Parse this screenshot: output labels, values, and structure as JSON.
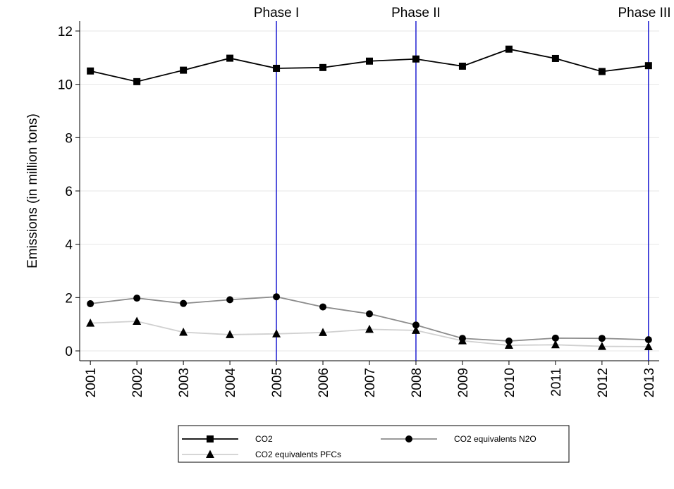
{
  "chart_data": {
    "type": "line",
    "ylabel": "Emissions (in million tons)",
    "x": [
      2001,
      2002,
      2003,
      2004,
      2005,
      2006,
      2007,
      2008,
      2009,
      2010,
      2011,
      2012,
      2013
    ],
    "xlim": [
      2000.77,
      2013.23
    ],
    "xticks": [
      2001,
      2002,
      2003,
      2004,
      2005,
      2006,
      2007,
      2008,
      2009,
      2010,
      2011,
      2012,
      2013
    ],
    "ylim": [
      -0.37,
      12.37
    ],
    "yticks": [
      0,
      2,
      4,
      6,
      8,
      10,
      12
    ],
    "grid": true,
    "series": [
      {
        "name": "CO2",
        "color": "#000000",
        "marker": "square",
        "values": [
          10.5,
          10.1,
          10.53,
          10.98,
          10.6,
          10.63,
          10.87,
          10.95,
          10.68,
          11.32,
          10.97,
          10.48,
          10.7
        ]
      },
      {
        "name": "CO2 equivalents N2O",
        "color": "#8c8c8c",
        "marker": "circle",
        "values": [
          1.77,
          1.98,
          1.78,
          1.92,
          2.03,
          1.65,
          1.39,
          0.97,
          0.47,
          0.37,
          0.48,
          0.47,
          0.42
        ]
      },
      {
        "name": "CO2 equivalents PFCs",
        "color": "#d0d0d0",
        "marker": "triangle",
        "values": [
          1.04,
          1.11,
          0.7,
          0.61,
          0.64,
          0.69,
          0.81,
          0.77,
          0.38,
          0.21,
          0.23,
          0.17,
          0.16
        ]
      }
    ],
    "annotations": [
      {
        "x": 2005,
        "label": "Phase I",
        "color": "#0000cc"
      },
      {
        "x": 2008,
        "label": "Phase II",
        "color": "#0000cc"
      },
      {
        "x": 2013,
        "label": "Phase III",
        "color": "#0000cc"
      }
    ]
  }
}
